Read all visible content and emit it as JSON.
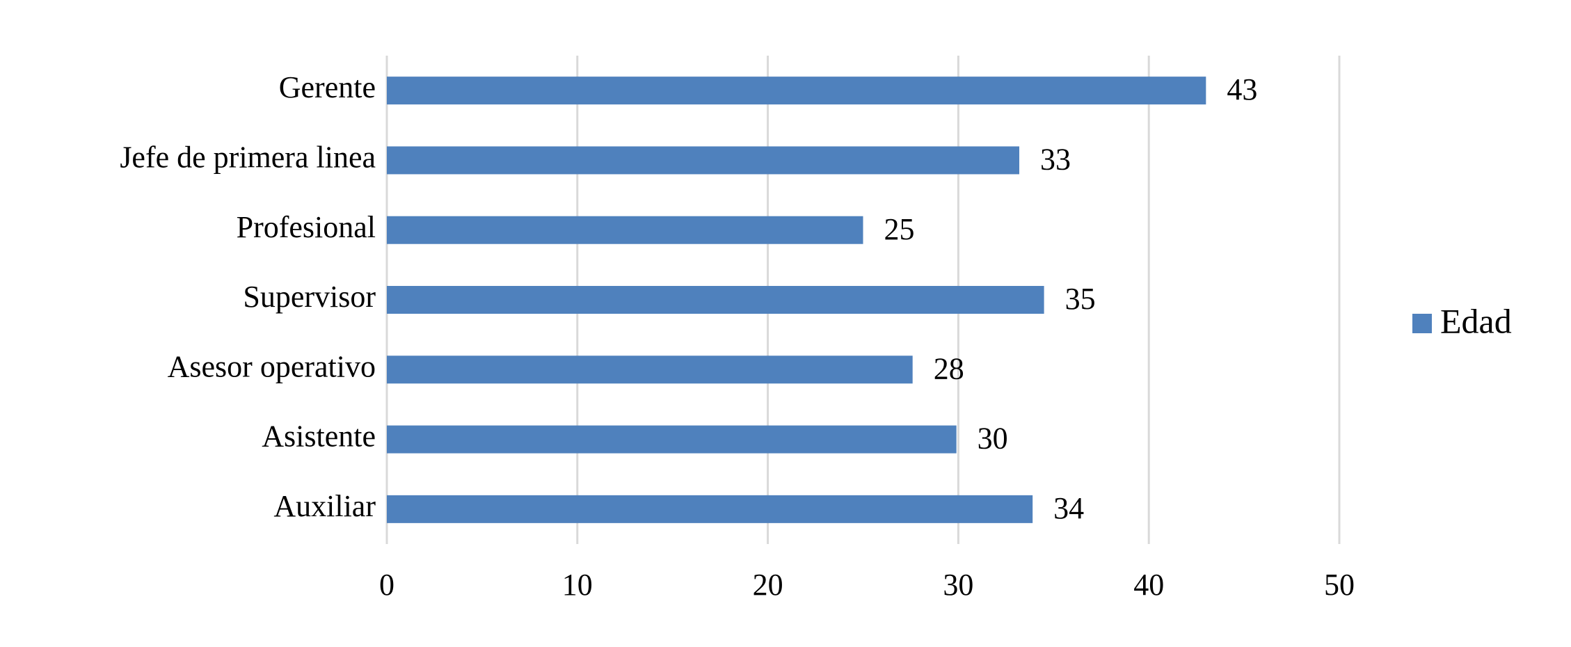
{
  "chart_data": {
    "type": "bar",
    "orientation": "horizontal",
    "categories": [
      "Gerente",
      "Jefe de primera linea",
      "Profesional",
      "Supervisor",
      "Asesor operativo",
      "Asistente",
      "Auxiliar"
    ],
    "series": [
      {
        "name": "Edad",
        "color": "#4f81bd",
        "values": [
          43,
          33.2,
          25,
          34.5,
          27.6,
          29.9,
          33.9
        ],
        "value_labels": [
          "43",
          "33",
          "25",
          "35",
          "28",
          "30",
          "34"
        ]
      }
    ],
    "xlim": [
      0,
      50
    ],
    "xticks": [
      0,
      10,
      20,
      30,
      40,
      50
    ],
    "grid": true,
    "legend": "right"
  }
}
